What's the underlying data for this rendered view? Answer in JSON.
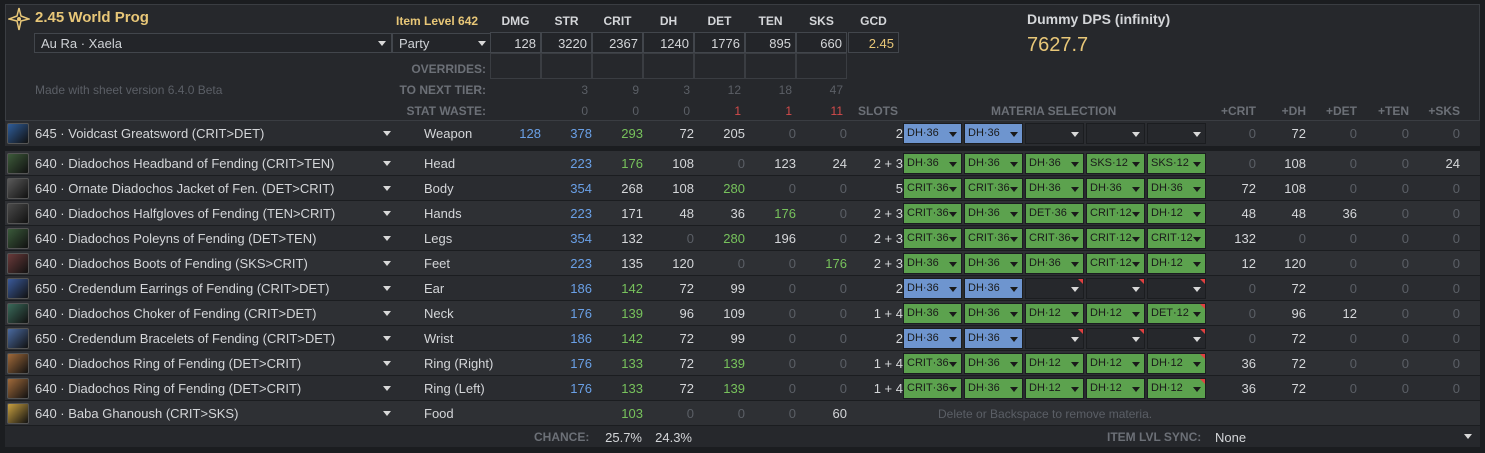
{
  "header": {
    "title": "2.45 World Prog",
    "race": "Au Ra · Xaela",
    "party": "Party",
    "version": "Made with sheet version 6.4.0 Beta",
    "item_level": "Item Level 642",
    "stat_headers": [
      "DMG",
      "STR",
      "CRIT",
      "DH",
      "DET",
      "TEN",
      "SKS",
      "GCD"
    ],
    "stat_values": [
      "128",
      "3220",
      "2367",
      "1240",
      "1776",
      "895",
      "660",
      "2.45"
    ],
    "dps_title": "Dummy DPS (infinity)",
    "dps_value": "7627.7",
    "overrides_label": "OVERRIDES:",
    "next_tier_label": "TO NEXT TIER:",
    "next_tier": [
      "3",
      "9",
      "3",
      "12",
      "18",
      "47"
    ],
    "waste_label": "STAT WASTE:",
    "waste": [
      "0",
      "0",
      "0",
      "1",
      "1",
      "11"
    ],
    "slots_label": "SLOTS",
    "materia_label": "MATERIA SELECTION",
    "bonus_headers": [
      "+CRIT",
      "+DH",
      "+DET",
      "+TEN",
      "+SKS"
    ]
  },
  "gear": [
    {
      "name": "645 · Voidcast Greatsword (CRIT>DET)",
      "slot": "Weapon",
      "dmg": "128",
      "str": "378",
      "crit": "293",
      "dh": "72",
      "det": "205",
      "ten": "0",
      "sks": "0",
      "slots": "2",
      "mat": [
        "DH·36",
        "DH·36",
        "",
        "",
        ""
      ],
      "matc": [
        "b",
        "b",
        "e",
        "e",
        "e"
      ],
      "flag": [
        0,
        0,
        0,
        0,
        0
      ],
      "bonus": [
        "0",
        "72",
        "0",
        "0",
        "0"
      ],
      "icon": "#2f5d9a"
    },
    {
      "name": "640 · Diadochos Headband of Fending (CRIT>TEN)",
      "slot": "Head",
      "dmg": "",
      "str": "223",
      "crit": "176",
      "dh": "108",
      "det": "0",
      "ten": "123",
      "sks": "24",
      "slots": "2 + 3",
      "mat": [
        "DH·36",
        "DH·36",
        "DH·36",
        "SKS·12",
        "SKS·12"
      ],
      "matc": [
        "g",
        "g",
        "g",
        "g",
        "g"
      ],
      "flag": [
        0,
        0,
        0,
        0,
        0
      ],
      "bonus": [
        "0",
        "108",
        "0",
        "0",
        "24"
      ],
      "icon": "#3d5b3a"
    },
    {
      "name": "640 · Ornate Diadochos Jacket of Fen. (DET>CRIT)",
      "slot": "Body",
      "dmg": "",
      "str": "354",
      "crit": "268",
      "dh": "108",
      "det": "280",
      "ten": "0",
      "sks": "0",
      "slots": "5",
      "mat": [
        "CRIT·36",
        "CRIT·36",
        "DH·36",
        "DH·36",
        "DH·36"
      ],
      "matc": [
        "g",
        "g",
        "g",
        "g",
        "g"
      ],
      "flag": [
        0,
        0,
        0,
        0,
        0
      ],
      "bonus": [
        "72",
        "108",
        "0",
        "0",
        "0"
      ],
      "icon": "#5a5a5a"
    },
    {
      "name": "640 · Diadochos Halfgloves of Fending (TEN>CRIT)",
      "slot": "Hands",
      "dmg": "",
      "str": "223",
      "crit": "171",
      "dh": "48",
      "det": "36",
      "ten": "176",
      "sks": "0",
      "slots": "2 + 3",
      "mat": [
        "CRIT·36",
        "DH·36",
        "DET·36",
        "CRIT·12",
        "DH·12"
      ],
      "matc": [
        "g",
        "g",
        "g",
        "g",
        "g"
      ],
      "flag": [
        0,
        0,
        0,
        0,
        0
      ],
      "bonus": [
        "48",
        "48",
        "36",
        "0",
        "0"
      ],
      "icon": "#4a4a4a"
    },
    {
      "name": "640 · Diadochos Poleyns of Fending (DET>TEN)",
      "slot": "Legs",
      "dmg": "",
      "str": "354",
      "crit": "132",
      "dh": "0",
      "det": "280",
      "ten": "196",
      "sks": "0",
      "slots": "2 + 3",
      "mat": [
        "CRIT·36",
        "CRIT·36",
        "CRIT·36",
        "CRIT·12",
        "CRIT·12"
      ],
      "matc": [
        "g",
        "g",
        "g",
        "g",
        "g"
      ],
      "flag": [
        0,
        0,
        0,
        0,
        0
      ],
      "bonus": [
        "132",
        "0",
        "0",
        "0",
        "0"
      ],
      "icon": "#3a5a3a"
    },
    {
      "name": "640 · Diadochos Boots of Fending (SKS>CRIT)",
      "slot": "Feet",
      "dmg": "",
      "str": "223",
      "crit": "135",
      "dh": "120",
      "det": "0",
      "ten": "0",
      "sks": "176",
      "slots": "2 + 3",
      "mat": [
        "DH·36",
        "DH·36",
        "DH·36",
        "CRIT·12",
        "DH·12"
      ],
      "matc": [
        "g",
        "g",
        "g",
        "g",
        "g"
      ],
      "flag": [
        0,
        0,
        0,
        0,
        0
      ],
      "bonus": [
        "12",
        "120",
        "0",
        "0",
        "0"
      ],
      "icon": "#6a3a3a"
    },
    {
      "name": "650 · Credendum Earrings of Fending (CRIT>DET)",
      "slot": "Ear",
      "dmg": "",
      "str": "186",
      "crit": "142",
      "dh": "72",
      "det": "99",
      "ten": "0",
      "sks": "0",
      "slots": "2",
      "mat": [
        "DH·36",
        "DH·36",
        "",
        "",
        ""
      ],
      "matc": [
        "b",
        "b",
        "e",
        "e",
        "e"
      ],
      "flag": [
        0,
        0,
        1,
        1,
        1
      ],
      "bonus": [
        "0",
        "72",
        "0",
        "0",
        "0"
      ],
      "icon": "#3a5a9a"
    },
    {
      "name": "640 · Diadochos Choker of Fending (CRIT>DET)",
      "slot": "Neck",
      "dmg": "",
      "str": "176",
      "crit": "139",
      "dh": "96",
      "det": "109",
      "ten": "0",
      "sks": "0",
      "slots": "1 + 4",
      "mat": [
        "DH·36",
        "DH·36",
        "DH·12",
        "DH·12",
        "DET·12"
      ],
      "matc": [
        "g",
        "g",
        "g",
        "g",
        "g"
      ],
      "flag": [
        0,
        0,
        0,
        0,
        1
      ],
      "bonus": [
        "0",
        "96",
        "12",
        "0",
        "0"
      ],
      "icon": "#3a6a5a"
    },
    {
      "name": "650 · Credendum Bracelets of Fending (CRIT>DET)",
      "slot": "Wrist",
      "dmg": "",
      "str": "186",
      "crit": "142",
      "dh": "72",
      "det": "99",
      "ten": "0",
      "sks": "0",
      "slots": "2",
      "mat": [
        "DH·36",
        "DH·36",
        "",
        "",
        ""
      ],
      "matc": [
        "b",
        "b",
        "e",
        "e",
        "e"
      ],
      "flag": [
        0,
        0,
        1,
        1,
        1
      ],
      "bonus": [
        "0",
        "72",
        "0",
        "0",
        "0"
      ],
      "icon": "#4a6aa0"
    },
    {
      "name": "640 · Diadochos Ring of Fending (DET>CRIT)",
      "slot": "Ring (Right)",
      "dmg": "",
      "str": "176",
      "crit": "133",
      "dh": "72",
      "det": "139",
      "ten": "0",
      "sks": "0",
      "slots": "1 + 4",
      "mat": [
        "CRIT·36",
        "DH·36",
        "DH·12",
        "DH·12",
        "DH·12"
      ],
      "matc": [
        "g",
        "g",
        "g",
        "g",
        "g"
      ],
      "flag": [
        0,
        0,
        0,
        0,
        1
      ],
      "bonus": [
        "36",
        "72",
        "0",
        "0",
        "0"
      ],
      "icon": "#a06a3a"
    },
    {
      "name": "640 · Diadochos Ring of Fending (DET>CRIT)",
      "slot": "Ring (Left)",
      "dmg": "",
      "str": "176",
      "crit": "133",
      "dh": "72",
      "det": "139",
      "ten": "0",
      "sks": "0",
      "slots": "1 + 4",
      "mat": [
        "CRIT·36",
        "DH·36",
        "DH·12",
        "DH·12",
        "DH·12"
      ],
      "matc": [
        "g",
        "g",
        "g",
        "g",
        "g"
      ],
      "flag": [
        0,
        0,
        0,
        0,
        1
      ],
      "bonus": [
        "36",
        "72",
        "0",
        "0",
        "0"
      ],
      "icon": "#a06a3a"
    },
    {
      "name": "640 · Baba Ghanoush (CRIT>SKS)",
      "slot": "Food",
      "dmg": "",
      "str": "",
      "crit": "103",
      "dh": "0",
      "det": "0",
      "ten": "0",
      "sks": "60",
      "slots": "",
      "mat": [],
      "matc": [],
      "flag": [],
      "bonus": [],
      "icon": "#c8a040"
    }
  ],
  "materia_hint": "Delete or Backspace to remove materia.",
  "footer": {
    "chance_label": "CHANCE:",
    "chance_crit": "25.7%",
    "chance_dh": "24.3%",
    "sync_label": "ITEM LVL SYNC:",
    "sync_value": "None"
  },
  "colors": {
    "accent": "#e8c778",
    "materia_green": "#5ca24e",
    "materia_blue": "#6e95cf",
    "positive": "#77c25c",
    "stat_blue": "#6aa0e6",
    "waste": "#d44b4b"
  }
}
